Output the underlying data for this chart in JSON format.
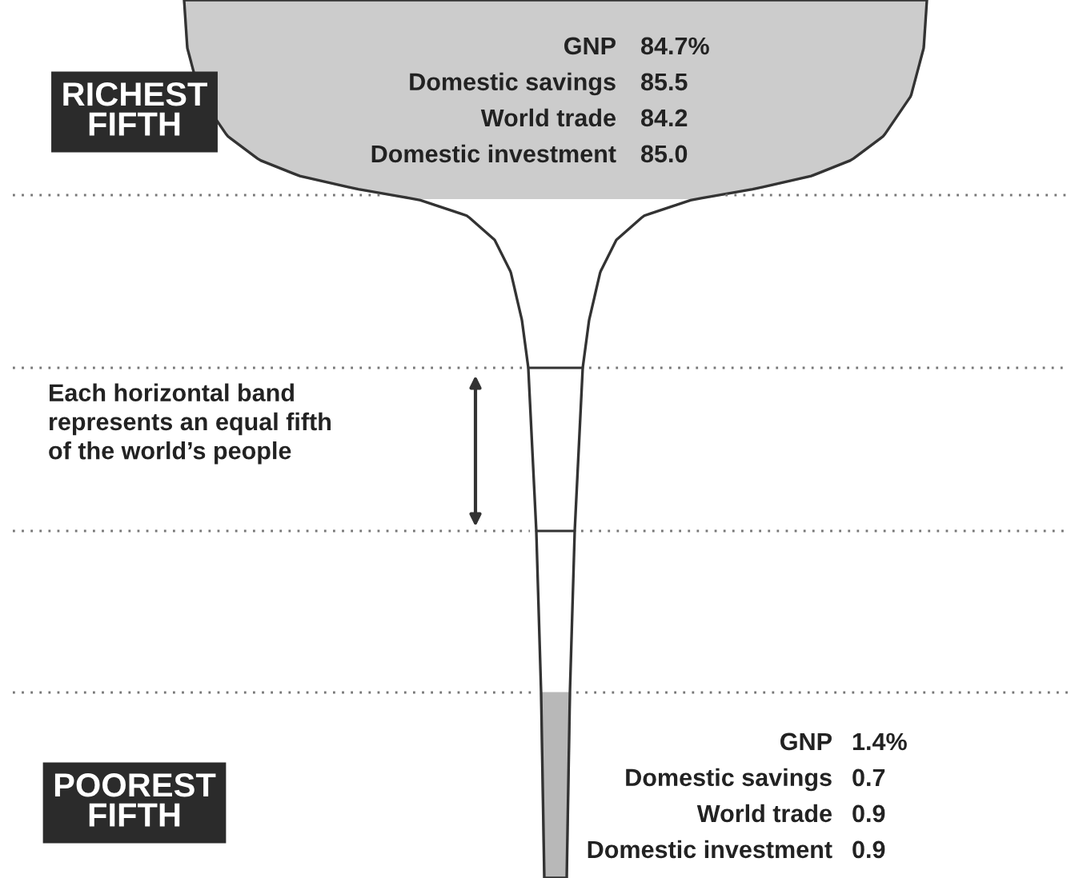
{
  "chart_data": {
    "type": "other",
    "categories": [
      "GNP",
      "Domestic savings",
      "World trade",
      "Domestic investment"
    ],
    "series": [
      {
        "name": "RICHEST\nFIFTH",
        "values": [
          84.7,
          85.5,
          84.2,
          85.0
        ],
        "value_labels": [
          "84.7%",
          "85.5",
          "84.2",
          "85.0"
        ]
      },
      {
        "name": "POOREST\nFIFTH",
        "values": [
          1.4,
          0.7,
          0.9,
          0.9
        ],
        "value_labels": [
          "1.4%",
          "0.7",
          "0.9",
          "0.9"
        ]
      }
    ],
    "annotations": [
      "Each horizontal band\nrepresents an equal fifth\nof the world’s people"
    ]
  }
}
